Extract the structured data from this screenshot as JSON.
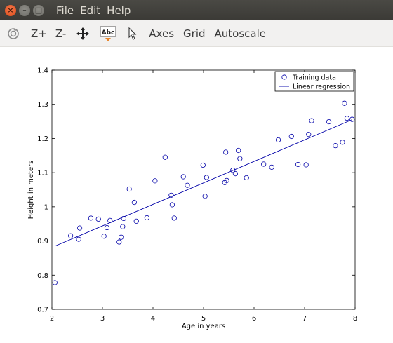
{
  "window": {
    "close_glyph": "×",
    "minimize_glyph": "–",
    "maximize_glyph": "□"
  },
  "menubar": {
    "items": [
      "File",
      "Edit",
      "Help"
    ]
  },
  "toolbar": {
    "zoom_in_label": "Z+",
    "zoom_out_label": "Z-",
    "text_tool_label": "Abc",
    "axes_label": "Axes",
    "grid_label": "Grid",
    "autoscale_label": "Autoscale",
    "icons": [
      "rotate-icon",
      "pan-icon",
      "text-insert-icon",
      "select-arrow-icon"
    ]
  },
  "colors": {
    "series": "#0000a8",
    "axis": "#000000"
  },
  "chart_data": {
    "type": "scatter",
    "title": "",
    "xlabel": "Age in years",
    "ylabel": "Height in meters",
    "xlim": [
      2,
      8
    ],
    "ylim": [
      0.7,
      1.4
    ],
    "x_ticks": [
      "2",
      "3",
      "4",
      "5",
      "6",
      "7",
      "8"
    ],
    "y_ticks": [
      "0.7",
      "0.8",
      "0.9",
      "1",
      "1.1",
      "1.2",
      "1.3",
      "1.4"
    ],
    "grid": false,
    "legend_position": "top-right",
    "series": [
      {
        "name": "Training data",
        "kind": "markers",
        "marker": "circle",
        "points": [
          [
            2.06,
            0.778
          ],
          [
            2.37,
            0.915
          ],
          [
            2.53,
            0.905
          ],
          [
            2.55,
            0.938
          ],
          [
            2.77,
            0.967
          ],
          [
            2.92,
            0.964
          ],
          [
            3.03,
            0.914
          ],
          [
            3.09,
            0.939
          ],
          [
            3.15,
            0.96
          ],
          [
            3.33,
            0.897
          ],
          [
            3.37,
            0.911
          ],
          [
            3.4,
            0.942
          ],
          [
            3.42,
            0.966
          ],
          [
            3.53,
            1.052
          ],
          [
            3.63,
            1.013
          ],
          [
            3.67,
            0.958
          ],
          [
            3.88,
            0.968
          ],
          [
            4.04,
            1.076
          ],
          [
            4.24,
            1.145
          ],
          [
            4.36,
            1.034
          ],
          [
            4.38,
            1.006
          ],
          [
            4.42,
            0.967
          ],
          [
            4.6,
            1.088
          ],
          [
            4.68,
            1.063
          ],
          [
            4.99,
            1.122
          ],
          [
            5.03,
            1.031
          ],
          [
            5.06,
            1.086
          ],
          [
            5.42,
            1.071
          ],
          [
            5.44,
            1.16
          ],
          [
            5.46,
            1.077
          ],
          [
            5.58,
            1.107
          ],
          [
            5.63,
            1.097
          ],
          [
            5.69,
            1.165
          ],
          [
            5.72,
            1.141
          ],
          [
            5.85,
            1.085
          ],
          [
            6.19,
            1.125
          ],
          [
            6.35,
            1.116
          ],
          [
            6.48,
            1.196
          ],
          [
            6.74,
            1.206
          ],
          [
            6.87,
            1.124
          ],
          [
            7.03,
            1.123
          ],
          [
            7.08,
            1.212
          ],
          [
            7.14,
            1.252
          ],
          [
            7.48,
            1.249
          ],
          [
            7.61,
            1.179
          ],
          [
            7.75,
            1.189
          ],
          [
            7.79,
            1.303
          ],
          [
            7.84,
            1.259
          ],
          [
            7.94,
            1.256
          ]
        ]
      },
      {
        "name": "Linear regression",
        "kind": "line",
        "points": [
          [
            2.06,
            0.885
          ],
          [
            7.94,
            1.255
          ]
        ]
      }
    ]
  }
}
